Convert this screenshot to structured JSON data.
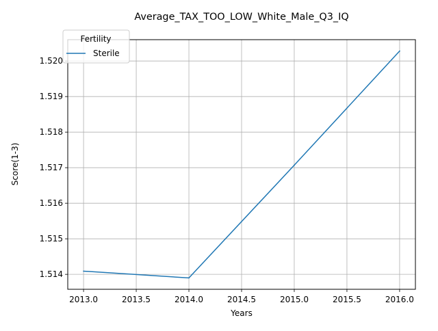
{
  "chart_data": {
    "type": "line",
    "title": "Average_TAX_TOO_LOW_White_Male_Q3_IQ",
    "xlabel": "Years",
    "ylabel": "Score(1-3)",
    "x": [
      2013,
      2014,
      2015,
      2016
    ],
    "series": [
      {
        "name": "Sterile",
        "values": [
          1.51409,
          1.5139,
          1.51707,
          1.52028
        ],
        "color": "#1f77b4"
      }
    ],
    "xlim": [
      2012.85,
      2016.15
    ],
    "ylim": [
      1.51358,
      1.5206
    ],
    "xticks": [
      2013.0,
      2013.5,
      2014.0,
      2014.5,
      2015.0,
      2015.5,
      2016.0
    ],
    "xtick_labels": [
      "2013.0",
      "2013.5",
      "2014.0",
      "2014.5",
      "2015.0",
      "2015.5",
      "2016.0"
    ],
    "yticks": [
      1.514,
      1.515,
      1.516,
      1.517,
      1.518,
      1.519,
      1.52
    ],
    "ytick_labels": [
      "1.514",
      "1.515",
      "1.516",
      "1.517",
      "1.518",
      "1.519",
      "1.520"
    ],
    "grid": true,
    "legend": {
      "title": "Fertility",
      "placement": "top-left"
    }
  }
}
